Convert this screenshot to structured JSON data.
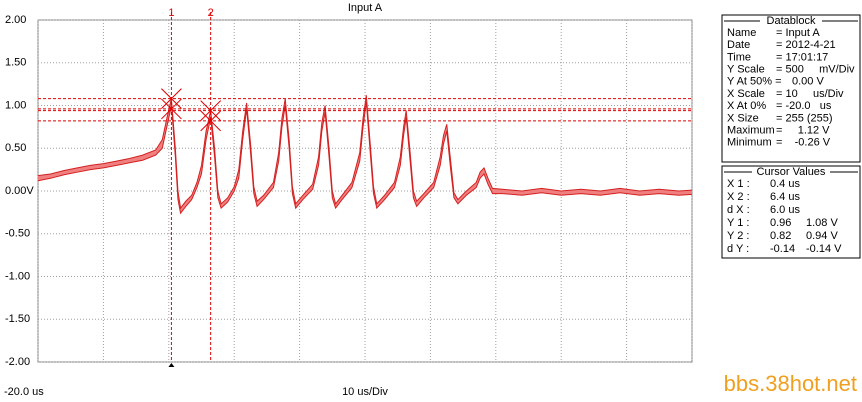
{
  "chart_data": {
    "type": "envelope",
    "title": "Input A",
    "xlabel": "10 us/Div",
    "xlim": [
      -20,
      80
    ],
    "ylim": [
      -2,
      2
    ],
    "xticks": [
      {
        "value": -20,
        "label": "-20.0 us"
      },
      {
        "value": -10,
        "label": null
      },
      {
        "value": 0,
        "label": null
      },
      {
        "value": 10,
        "label": null
      },
      {
        "value": 20,
        "label": null
      },
      {
        "value": 30,
        "label": null
      },
      {
        "value": 40,
        "label": null
      },
      {
        "value": 50,
        "label": null
      },
      {
        "value": 60,
        "label": null
      },
      {
        "value": 70,
        "label": null
      },
      {
        "value": 80,
        "label": null
      }
    ],
    "yticks": [
      {
        "value": 2,
        "label": "2.00"
      },
      {
        "value": 1.5,
        "label": "1.50"
      },
      {
        "value": 1,
        "label": "1.00"
      },
      {
        "value": 0.5,
        "label": "0.50"
      },
      {
        "value": 0,
        "label": "0.00V"
      },
      {
        "value": -0.5,
        "label": "-0.50"
      },
      {
        "value": -1,
        "label": "-1.00"
      },
      {
        "value": -1.5,
        "label": "-1.50"
      },
      {
        "value": -2,
        "label": "-2.00"
      }
    ],
    "grid": true,
    "color": "#f08080",
    "line_color": "#d42020",
    "cursor_color": "#e00000",
    "x": [
      -20,
      -18,
      -16,
      -14,
      -12,
      -10,
      -8,
      -6,
      -4,
      -2,
      -1,
      -0.3,
      0.4,
      1.0,
      1.4,
      1.8,
      2.6,
      3.5,
      4.3,
      5.0,
      5.7,
      6.4,
      7.0,
      7.5,
      8.0,
      9.0,
      10.0,
      10.7,
      11.3,
      11.9,
      12.5,
      13.0,
      13.5,
      14.5,
      16.0,
      16.8,
      17.3,
      17.8,
      18.4,
      18.9,
      19.4,
      20.5,
      22.0,
      22.9,
      23.4,
      23.9,
      24.5,
      25.0,
      25.5,
      26.5,
      28.0,
      29.2,
      29.7,
      30.2,
      30.8,
      31.3,
      31.8,
      33.0,
      34.5,
      35.4,
      35.9,
      36.3,
      36.9,
      37.4,
      37.9,
      39.0,
      40.5,
      41.5,
      42.0,
      42.5,
      43.1,
      43.6,
      44.2,
      45.5,
      47.0,
      47.6,
      48.2,
      48.8,
      49.5,
      51,
      54,
      57,
      60,
      63,
      66,
      69,
      72,
      75,
      78,
      80
    ],
    "series": [
      {
        "values": [
          0.18,
          0.2,
          0.24,
          0.27,
          0.3,
          0.32,
          0.35,
          0.38,
          0.42,
          0.48,
          0.6,
          0.85,
          1.08,
          0.5,
          0.0,
          -0.2,
          -0.12,
          -0.05,
          0.1,
          0.3,
          0.7,
          0.94,
          0.5,
          0.0,
          -0.15,
          -0.08,
          0.05,
          0.25,
          0.7,
          1.03,
          0.55,
          0.05,
          -0.12,
          -0.05,
          0.1,
          0.45,
          0.85,
          1.08,
          0.6,
          0.05,
          -0.15,
          -0.05,
          0.08,
          0.4,
          0.8,
          1.0,
          0.5,
          0.0,
          -0.15,
          -0.05,
          0.1,
          0.45,
          0.85,
          1.12,
          0.55,
          0.05,
          -0.15,
          -0.05,
          0.1,
          0.4,
          0.75,
          0.94,
          0.45,
          0.0,
          -0.12,
          -0.03,
          0.1,
          0.4,
          0.65,
          0.78,
          0.35,
          -0.02,
          -0.1,
          0.0,
          0.1,
          0.22,
          0.27,
          0.15,
          0.03,
          0.02,
          0.0,
          0.03,
          0.0,
          0.02,
          0.0,
          0.03,
          0.0,
          0.02,
          0.0,
          0.01
        ]
      },
      {
        "values": [
          0.12,
          0.15,
          0.19,
          0.22,
          0.25,
          0.27,
          0.3,
          0.33,
          0.36,
          0.42,
          0.5,
          0.75,
          1.0,
          0.4,
          -0.1,
          -0.26,
          -0.18,
          -0.1,
          0.04,
          0.2,
          0.6,
          0.86,
          0.4,
          -0.08,
          -0.2,
          -0.13,
          0.0,
          0.15,
          0.6,
          0.96,
          0.45,
          -0.03,
          -0.18,
          -0.1,
          0.04,
          0.35,
          0.75,
          1.0,
          0.5,
          -0.03,
          -0.2,
          -0.1,
          0.02,
          0.3,
          0.7,
          0.92,
          0.4,
          -0.08,
          -0.2,
          -0.1,
          0.04,
          0.35,
          0.75,
          1.04,
          0.45,
          -0.03,
          -0.2,
          -0.1,
          0.04,
          0.3,
          0.65,
          0.86,
          0.35,
          -0.08,
          -0.18,
          -0.08,
          0.04,
          0.3,
          0.55,
          0.7,
          0.25,
          -0.08,
          -0.15,
          -0.05,
          0.04,
          0.15,
          0.2,
          0.08,
          -0.03,
          -0.03,
          -0.05,
          -0.02,
          -0.05,
          -0.03,
          -0.05,
          -0.02,
          -0.05,
          -0.03,
          -0.05,
          -0.04
        ]
      }
    ],
    "cursors": [
      {
        "label": "1",
        "x": 0.4,
        "y": [
          0.96,
          1.08
        ]
      },
      {
        "label": "2",
        "x": 6.4,
        "y": [
          0.82,
          0.94
        ]
      }
    ]
  },
  "datablock": {
    "title": "Datablock",
    "rows": [
      [
        "Name",
        "= Input A"
      ],
      [
        "Date",
        "= 2012-4-21"
      ],
      [
        "Time",
        "= 17:01:17"
      ],
      [
        "Y Scale",
        "= 500     mV/Div"
      ],
      [
        "Y At 50% =",
        "0.00 V"
      ],
      [
        "X Scale",
        "= 10     us/Div"
      ],
      [
        "X At 0%",
        "= -20.0   us"
      ],
      [
        "X Size",
        "= 255 (255)"
      ],
      [
        "Maximum",
        "=     1.12 V"
      ],
      [
        "Minimum",
        "=    -0.26 V"
      ]
    ]
  },
  "cursor_values": {
    "title": "Cursor Values",
    "rows": [
      [
        "X 1 :",
        "0.4 us",
        ""
      ],
      [
        "X 2 :",
        "6.4 us",
        ""
      ],
      [
        "d X :",
        "6.0 us",
        ""
      ],
      [
        "Y 1 :",
        "0.96",
        "1.08 V"
      ],
      [
        "Y 2 :",
        "0.82",
        "0.94 V"
      ],
      [
        "d Y :",
        "-0.14",
        "-0.14 V"
      ]
    ]
  },
  "watermark": "bbs.38hot.net"
}
